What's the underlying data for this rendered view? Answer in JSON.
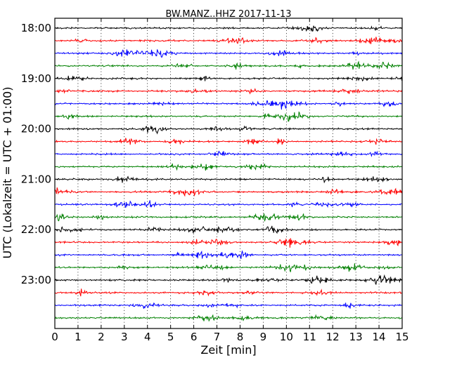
{
  "chart_data": {
    "type": "line",
    "title": "BW.MANZ..HHZ 2017-11-13",
    "xlabel": "Zeit  [min]",
    "ylabel": "UTC (Lokalzeit = UTC + 01:00)",
    "xlim": [
      0,
      15
    ],
    "x_ticks": [
      0,
      1,
      2,
      3,
      4,
      5,
      6,
      7,
      8,
      9,
      10,
      11,
      12,
      13,
      14,
      15
    ],
    "x_tick_labels": [
      "0",
      "1",
      "2",
      "3",
      "4",
      "5",
      "6",
      "7",
      "8",
      "9",
      "10",
      "11",
      "12",
      "13",
      "14",
      "15"
    ],
    "y_tick_labels": [
      "18:00",
      "19:00",
      "20:00",
      "21:00",
      "22:00",
      "23:00"
    ],
    "grid": "vertical dotted at each minute",
    "trace_start_times": [
      "18:00",
      "18:15",
      "18:30",
      "18:45",
      "19:00",
      "19:15",
      "19:30",
      "19:45",
      "20:00",
      "20:15",
      "20:30",
      "20:45",
      "21:00",
      "21:15",
      "21:30",
      "21:45",
      "22:00",
      "22:15",
      "22:30",
      "22:45",
      "23:00",
      "23:15",
      "23:30",
      "23:45"
    ],
    "trace_colors": [
      "#000000",
      "#ff0000",
      "#0000ff",
      "#008000"
    ],
    "trace_minutes": 15
  }
}
